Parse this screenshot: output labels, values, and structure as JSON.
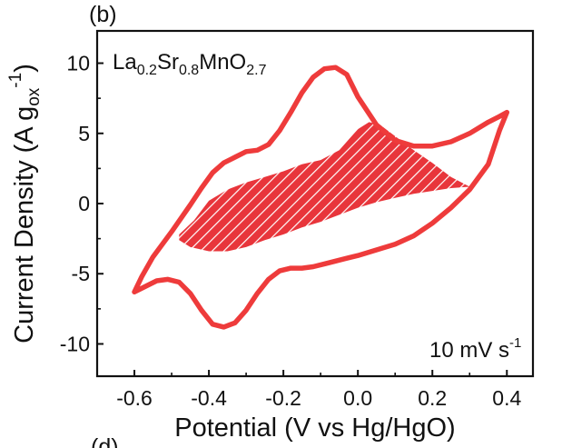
{
  "chart_data": {
    "type": "line",
    "panel_label": "(b)",
    "next_panel_label": "(d)",
    "xlabel": "Potential (V vs Hg/HgO)",
    "ylabel": "Current Density (A g",
    "ylabel_sub": "ox",
    "ylabel_sup": "-1",
    "ylabel_close": ")",
    "xlim": [
      -0.7,
      0.47
    ],
    "ylim": [
      -12.3,
      12.3
    ],
    "x_ticks": [
      -0.6,
      -0.4,
      -0.2,
      0.0,
      0.2,
      0.4
    ],
    "x_tick_labels": [
      "-0.6",
      "-0.4",
      "-0.2",
      "0.0",
      "0.2",
      "0.4"
    ],
    "y_ticks": [
      -10,
      -5,
      0,
      5,
      10
    ],
    "y_tick_labels": [
      "-10",
      "-5",
      "0",
      "5",
      "10"
    ],
    "grid": false,
    "compound": {
      "parts": [
        {
          "text": "La",
          "sub": "0.2"
        },
        {
          "text": "Sr",
          "sub": "0.8"
        },
        {
          "text": "MnO",
          "sub": "2.7"
        }
      ]
    },
    "scan_rate": {
      "text": "10 mV s",
      "sup": "-1"
    },
    "color": "#ee3b3b",
    "cv_curve": {
      "x": [
        0.4,
        0.38,
        0.35,
        0.3,
        0.25,
        0.2,
        0.15,
        0.1,
        0.05,
        0.0,
        -0.03,
        -0.06,
        -0.09,
        -0.12,
        -0.15,
        -0.18,
        -0.21,
        -0.24,
        -0.27,
        -0.3,
        -0.33,
        -0.36,
        -0.39,
        -0.42,
        -0.45,
        -0.48,
        -0.51,
        -0.54,
        -0.57,
        -0.6,
        -0.58,
        -0.55,
        -0.5,
        -0.45,
        -0.42,
        -0.39,
        -0.36,
        -0.33,
        -0.3,
        -0.27,
        -0.24,
        -0.21,
        -0.18,
        -0.15,
        -0.12,
        -0.09,
        -0.06,
        -0.03,
        0.0,
        0.05,
        0.1,
        0.15,
        0.2,
        0.25,
        0.3,
        0.35,
        0.38,
        0.4
      ],
      "y": [
        6.5,
        5.2,
        2.8,
        1.0,
        -0.3,
        -1.4,
        -2.3,
        -2.9,
        -3.3,
        -3.7,
        -3.9,
        -4.1,
        -4.3,
        -4.5,
        -4.6,
        -4.6,
        -4.8,
        -5.4,
        -6.4,
        -7.6,
        -8.5,
        -8.8,
        -8.6,
        -7.6,
        -6.4,
        -5.6,
        -5.4,
        -5.5,
        -5.9,
        -6.3,
        -5.2,
        -3.8,
        -2.0,
        -0.1,
        1.1,
        2.2,
        2.9,
        3.3,
        3.7,
        3.8,
        4.2,
        5.2,
        6.5,
        7.9,
        9.0,
        9.6,
        9.7,
        9.2,
        7.6,
        5.6,
        4.5,
        4.1,
        4.1,
        4.4,
        5.0,
        5.8,
        6.2,
        6.5
      ]
    },
    "shaded_region": {
      "upper": {
        "x": [
          -0.48,
          -0.44,
          -0.4,
          -0.35,
          -0.3,
          -0.25,
          -0.2,
          -0.15,
          -0.1,
          -0.05,
          0.0,
          0.03,
          0.06,
          0.1,
          0.15,
          0.2,
          0.25,
          0.3
        ],
        "y": [
          -2.2,
          -1.2,
          0.2,
          1.0,
          1.5,
          1.9,
          2.3,
          2.8,
          3.1,
          3.8,
          5.3,
          5.8,
          5.6,
          4.8,
          3.8,
          2.9,
          1.9,
          1.2
        ]
      },
      "lower": {
        "x": [
          -0.48,
          -0.45,
          -0.4,
          -0.35,
          -0.3,
          -0.25,
          -0.2,
          -0.15,
          -0.1,
          -0.05,
          0.0,
          0.05,
          0.1,
          0.15,
          0.2,
          0.25,
          0.3
        ],
        "y": [
          -2.6,
          -3.1,
          -3.4,
          -3.4,
          -3.1,
          -2.6,
          -2.2,
          -1.7,
          -1.3,
          -0.8,
          -0.3,
          0.1,
          0.4,
          0.7,
          0.9,
          1.1,
          1.2
        ]
      },
      "style": "hatched"
    }
  }
}
